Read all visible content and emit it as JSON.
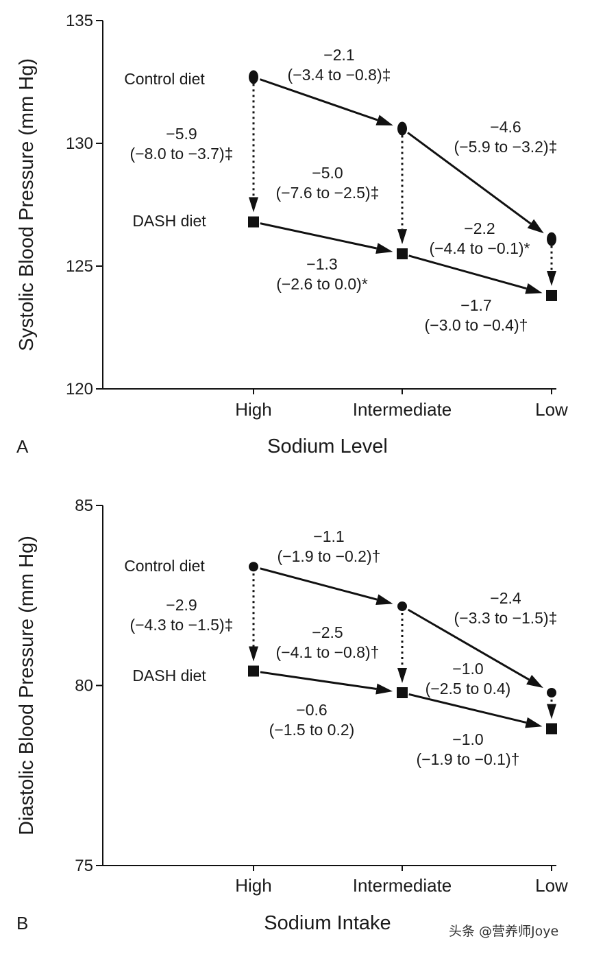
{
  "chart_data": [
    {
      "type": "line",
      "panel_label": "A",
      "ylabel": "Systolic Blood Pressure (mm Hg)",
      "xlabel": "Sodium Level",
      "ylim": [
        120,
        135
      ],
      "yticks": [
        120,
        125,
        130,
        135
      ],
      "categories": [
        "High",
        "Intermediate",
        "Low"
      ],
      "grid": false,
      "series": [
        {
          "name": "Control diet",
          "marker": "circle",
          "values": [
            132.7,
            130.6,
            126.1
          ]
        },
        {
          "name": "DASH diet",
          "marker": "square",
          "values": [
            126.8,
            125.5,
            123.8
          ]
        }
      ],
      "annotations": [
        {
          "from": "Control diet High",
          "to": "Control diet Intermediate",
          "value": "−2.1",
          "ci": "(−3.4 to −0.8)‡"
        },
        {
          "from": "Control diet Intermediate",
          "to": "Control diet Low",
          "value": "−4.6",
          "ci": "(−5.9 to −3.2)‡"
        },
        {
          "from": "Control diet High",
          "to": "DASH diet High",
          "value": "−5.9",
          "ci": "(−8.0 to −3.7)‡"
        },
        {
          "from": "Control diet Intermediate",
          "to": "DASH diet Intermediate",
          "value": "−5.0",
          "ci": "(−7.6 to −2.5)‡"
        },
        {
          "from": "Control diet Low",
          "to": "DASH diet Low",
          "value": "−2.2",
          "ci": "(−4.4 to −0.1)*"
        },
        {
          "from": "DASH diet High",
          "to": "DASH diet Intermediate",
          "value": "−1.3",
          "ci": "(−2.6 to 0.0)*"
        },
        {
          "from": "DASH diet Intermediate",
          "to": "DASH diet Low",
          "value": "−1.7",
          "ci": "(−3.0 to −0.4)†"
        }
      ]
    },
    {
      "type": "line",
      "panel_label": "B",
      "ylabel": "Diastolic Blood Pressure (mm Hg)",
      "xlabel": "Sodium Intake",
      "ylim": [
        75,
        85
      ],
      "yticks": [
        75,
        80,
        85
      ],
      "categories": [
        "High",
        "Intermediate",
        "Low"
      ],
      "grid": false,
      "series": [
        {
          "name": "Control diet",
          "marker": "circle",
          "values": [
            83.3,
            82.2,
            79.8
          ]
        },
        {
          "name": "DASH diet",
          "marker": "square",
          "values": [
            80.4,
            79.8,
            78.8
          ]
        }
      ],
      "annotations": [
        {
          "from": "Control diet High",
          "to": "Control diet Intermediate",
          "value": "−1.1",
          "ci": "(−1.9 to −0.2)†"
        },
        {
          "from": "Control diet Intermediate",
          "to": "Control diet Low",
          "value": "−2.4",
          "ci": "(−3.3 to −1.5)‡"
        },
        {
          "from": "Control diet High",
          "to": "DASH diet High",
          "value": "−2.9",
          "ci": "(−4.3 to −1.5)‡"
        },
        {
          "from": "Control diet Intermediate",
          "to": "DASH diet Intermediate",
          "value": "−2.5",
          "ci": "(−4.1 to −0.8)†"
        },
        {
          "from": "Control diet Low",
          "to": "DASH diet Low",
          "value": "−1.0",
          "ci": "(−2.5 to 0.4)"
        },
        {
          "from": "DASH diet High",
          "to": "DASH diet Intermediate",
          "value": "−0.6",
          "ci": "(−1.5 to 0.2)"
        },
        {
          "from": "DASH diet Intermediate",
          "to": "DASH diet Low",
          "value": "−1.0",
          "ci": "(−1.9 to −0.1)†"
        }
      ]
    }
  ],
  "watermark": "头条 @营养师Joye",
  "colors": {
    "ink": "#111111",
    "background": "#ffffff"
  }
}
